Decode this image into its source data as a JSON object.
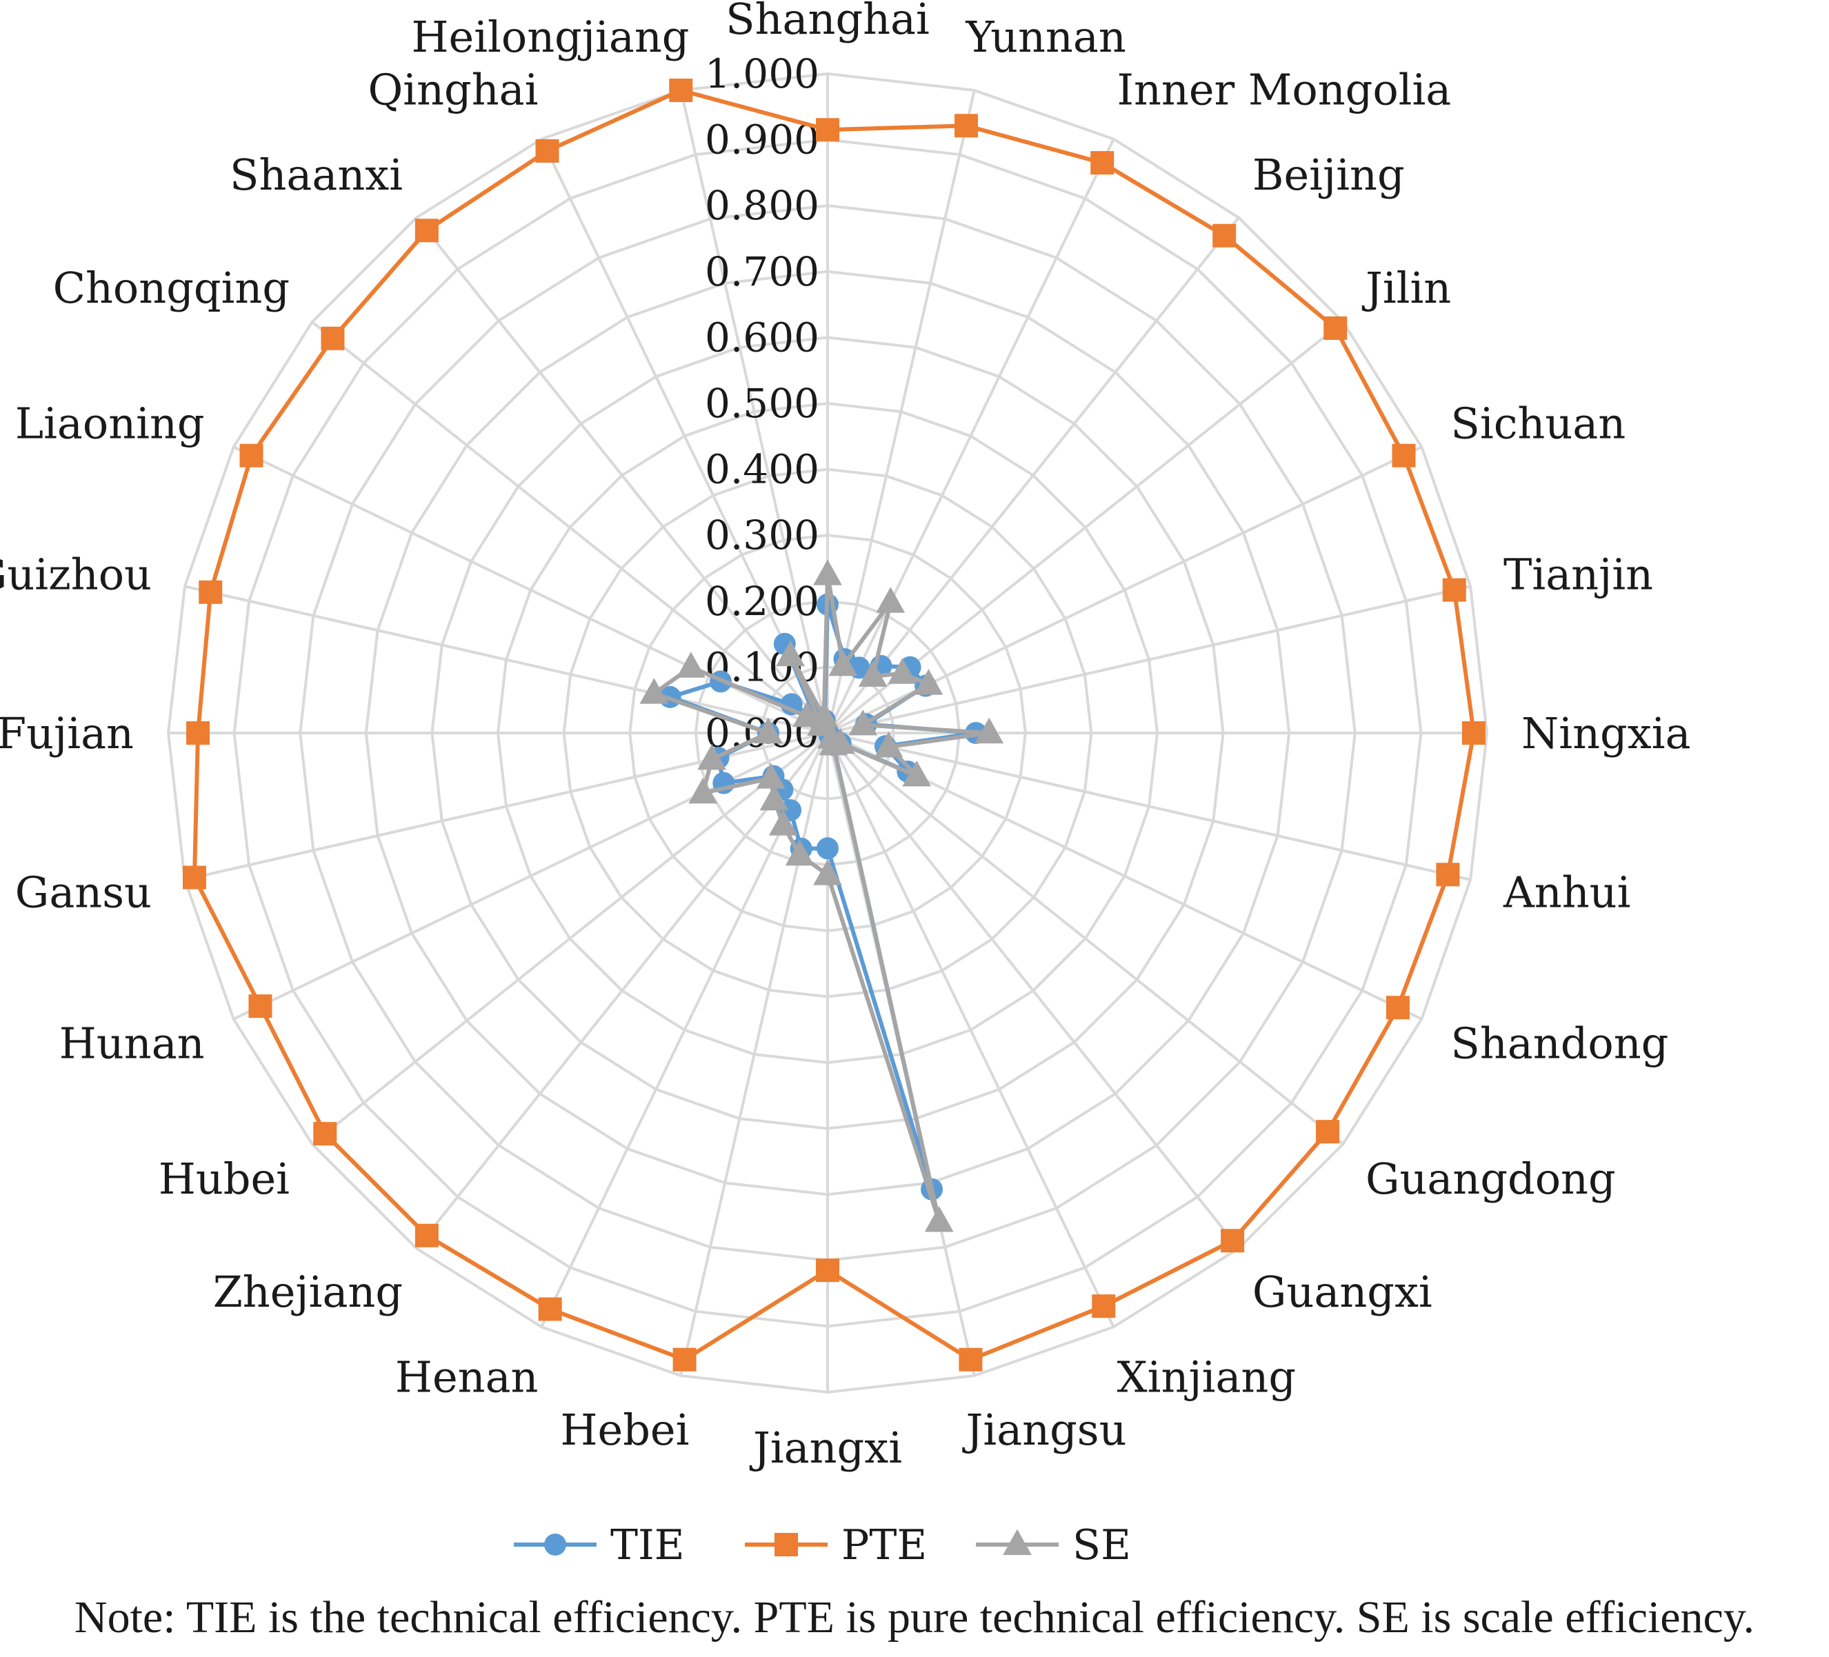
{
  "chart_data": {
    "type": "radar",
    "title": "",
    "note": "Note: TIE is the technical efficiency. PTE is pure technical efficiency. SE is scale efficiency.",
    "categories": [
      "Shanghai",
      "Yunnan",
      "Inner Mongolia",
      "Beijing",
      "Jilin",
      "Sichuan",
      "Tianjin",
      "Ningxia",
      "Anhui",
      "Shandong",
      "Guangdong",
      "Guangxi",
      "Xinjiang",
      "Jiangsu",
      "Jiangxi",
      "Hebei",
      "Henan",
      "Zhejiang",
      "Hubei",
      "Hunan",
      "Gansu",
      "Fujian",
      "Guizhou",
      "Liaoning",
      "Chongqing",
      "Shaanxi",
      "Qinghai",
      "Heilongjiang"
    ],
    "axis": {
      "min": 0,
      "max": 1.0,
      "step": 0.1,
      "tick_labels": [
        "0.000",
        "0.100",
        "0.200",
        "0.300",
        "0.400",
        "0.500",
        "0.600",
        "0.700",
        "0.800",
        "0.900",
        "1.000"
      ],
      "grid": true
    },
    "series": [
      {
        "name": "TIE",
        "color": "#5b9bd5",
        "marker": "circle",
        "values": [
          0.195,
          0.115,
          0.11,
          0.13,
          0.16,
          0.165,
          0.06,
          0.225,
          0.09,
          0.135,
          0.025,
          0.005,
          0.02,
          0.71,
          0.175,
          0.18,
          0.13,
          0.11,
          0.105,
          0.175,
          0.17,
          0.09,
          0.245,
          0.18,
          0.07,
          0.03,
          0.15,
          0.02
        ]
      },
      {
        "name": "PTE",
        "color": "#ed7d31",
        "marker": "square",
        "values": [
          0.915,
          0.945,
          0.96,
          0.965,
          0.985,
          0.97,
          0.975,
          0.98,
          0.965,
          0.96,
          0.97,
          0.985,
          0.965,
          0.975,
          0.815,
          0.975,
          0.97,
          0.975,
          0.975,
          0.955,
          0.985,
          0.955,
          0.96,
          0.97,
          0.96,
          0.975,
          0.98,
          1.0
        ]
      },
      {
        "name": "SE",
        "color": "#a5a5a5",
        "marker": "triangle",
        "values": [
          0.24,
          0.105,
          0.22,
          0.11,
          0.145,
          0.17,
          0.055,
          0.245,
          0.095,
          0.15,
          0.025,
          0.01,
          0.02,
          0.76,
          0.215,
          0.19,
          0.155,
          0.13,
          0.11,
          0.21,
          0.18,
          0.09,
          0.27,
          0.23,
          0.04,
          0.015,
          0.13,
          0.025
        ]
      }
    ],
    "legend_position": "bottom"
  }
}
